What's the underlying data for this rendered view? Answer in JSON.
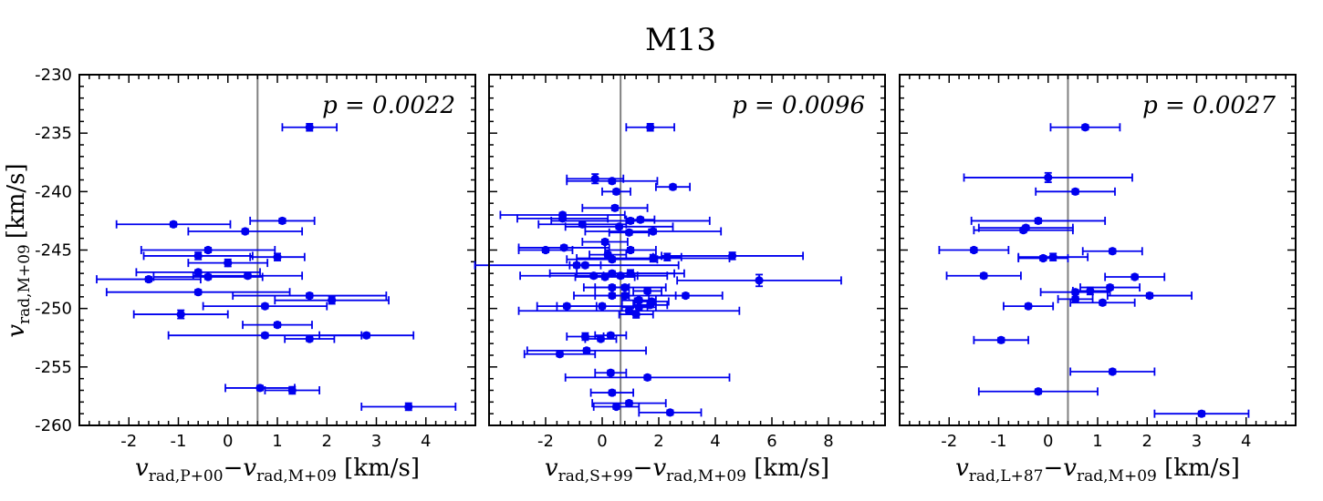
{
  "title": "M13",
  "y_axis_label_main": "v",
  "y_axis_label_sub": "rad,M+09",
  "y_axis_unit": "[km/s]",
  "chart_data": [
    {
      "type": "scatter",
      "title": "",
      "annotation": "p = 0.0022",
      "xlabel": "v_rad,P+00 − v_rad,M+09 [km/s]",
      "xlabel_parts": {
        "a_main": "v",
        "a_sub": "rad,P+00",
        "minus": "−",
        "b_main": "v",
        "b_sub": "rad,M+09",
        "unit": "[km/s]"
      },
      "ylabel": "v_rad,M+09 [km/s]",
      "xlim": [
        -3.0,
        5.0
      ],
      "ylim": [
        -260,
        -230
      ],
      "xticks": [
        -2,
        -1,
        0,
        1,
        2,
        3,
        4
      ],
      "yticks": [
        -230,
        -235,
        -240,
        -245,
        -250,
        -255,
        -260
      ],
      "vline": 0.6,
      "points": [
        {
          "x": 1.65,
          "y": -234.5,
          "xerr": 0.55,
          "yerr": 0.3
        },
        {
          "x": -1.1,
          "y": -242.8,
          "xerr": 1.15,
          "yerr": 0.2
        },
        {
          "x": 1.1,
          "y": -242.5,
          "xerr": 0.65,
          "yerr": 0.2
        },
        {
          "x": 0.35,
          "y": -243.4,
          "xerr": 1.15,
          "yerr": 0.2
        },
        {
          "x": -0.4,
          "y": -245.0,
          "xerr": 1.35,
          "yerr": 0.2
        },
        {
          "x": -0.6,
          "y": -245.5,
          "xerr": 1.1,
          "yerr": 0.3
        },
        {
          "x": 1.0,
          "y": -245.6,
          "xerr": 0.55,
          "yerr": 0.3
        },
        {
          "x": 0.0,
          "y": -246.1,
          "xerr": 0.8,
          "yerr": 0.3
        },
        {
          "x": -0.6,
          "y": -246.9,
          "xerr": 1.25,
          "yerr": 0.2
        },
        {
          "x": -0.4,
          "y": -247.3,
          "xerr": 1.1,
          "yerr": 0.2
        },
        {
          "x": 0.4,
          "y": -247.2,
          "xerr": 1.1,
          "yerr": 0.2
        },
        {
          "x": -1.6,
          "y": -247.5,
          "xerr": 1.05,
          "yerr": 0.2
        },
        {
          "x": -0.6,
          "y": -248.6,
          "xerr": 1.85,
          "yerr": 0.2
        },
        {
          "x": 1.65,
          "y": -248.9,
          "xerr": 1.55,
          "yerr": 0.2
        },
        {
          "x": 2.1,
          "y": -249.3,
          "xerr": 1.15,
          "yerr": 0.3
        },
        {
          "x": 0.75,
          "y": -249.8,
          "xerr": 1.25,
          "yerr": 0.2
        },
        {
          "x": -0.95,
          "y": -250.5,
          "xerr": 0.95,
          "yerr": 0.35
        },
        {
          "x": 1.0,
          "y": -251.4,
          "xerr": 0.7,
          "yerr": 0.2
        },
        {
          "x": 0.75,
          "y": -252.3,
          "xerr": 1.95,
          "yerr": 0.2
        },
        {
          "x": 2.8,
          "y": -252.3,
          "xerr": 0.95,
          "yerr": 0.2
        },
        {
          "x": 1.65,
          "y": -252.6,
          "xerr": 0.5,
          "yerr": 0.2
        },
        {
          "x": 0.65,
          "y": -256.8,
          "xerr": 0.7,
          "yerr": 0.2
        },
        {
          "x": 1.3,
          "y": -257.0,
          "xerr": 0.55,
          "yerr": 0.3
        },
        {
          "x": 3.65,
          "y": -258.4,
          "xerr": 0.95,
          "yerr": 0.3
        }
      ]
    },
    {
      "type": "scatter",
      "title": "",
      "annotation": "p = 0.0096",
      "xlabel": "v_rad,S+99 − v_rad,M+09 [km/s]",
      "xlabel_parts": {
        "a_main": "v",
        "a_sub": "rad,S+99",
        "minus": "−",
        "b_main": "v",
        "b_sub": "rad,M+09",
        "unit": "[km/s]"
      },
      "ylabel": "",
      "xlim": [
        -4.0,
        10.0
      ],
      "ylim": [
        -260,
        -230
      ],
      "xticks": [
        -2,
        0,
        2,
        4,
        6,
        8
      ],
      "yticks": [
        -230,
        -235,
        -240,
        -245,
        -250,
        -255,
        -260
      ],
      "vline": 0.65,
      "points": [
        {
          "x": 1.7,
          "y": -234.5,
          "xerr": 0.85,
          "yerr": 0.3
        },
        {
          "x": -0.25,
          "y": -238.9,
          "xerr": 1.0,
          "yerr": 0.4
        },
        {
          "x": 0.35,
          "y": -239.1,
          "xerr": 1.6,
          "yerr": 0.2
        },
        {
          "x": 2.5,
          "y": -239.6,
          "xerr": 0.6,
          "yerr": 0.2
        },
        {
          "x": 0.5,
          "y": -240.0,
          "xerr": 0.5,
          "yerr": 0.2
        },
        {
          "x": 0.45,
          "y": -241.4,
          "xerr": 1.15,
          "yerr": 0.2
        },
        {
          "x": -1.4,
          "y": -242.0,
          "xerr": 2.2,
          "yerr": 0.2
        },
        {
          "x": -1.4,
          "y": -242.3,
          "xerr": 1.6,
          "yerr": 0.2
        },
        {
          "x": 1.0,
          "y": -242.5,
          "xerr": 2.8,
          "yerr": 0.2
        },
        {
          "x": 1.35,
          "y": -242.4,
          "xerr": 0.5,
          "yerr": 0.2
        },
        {
          "x": -0.7,
          "y": -242.8,
          "xerr": 1.55,
          "yerr": 0.2
        },
        {
          "x": 0.6,
          "y": -243.0,
          "xerr": 1.9,
          "yerr": 0.2
        },
        {
          "x": 0.95,
          "y": -243.5,
          "xerr": 0.7,
          "yerr": 0.2
        },
        {
          "x": 1.8,
          "y": -243.4,
          "xerr": 2.4,
          "yerr": 0.2
        },
        {
          "x": 0.1,
          "y": -244.3,
          "xerr": 0.8,
          "yerr": 0.2
        },
        {
          "x": -2.0,
          "y": -245.0,
          "xerr": 0.95,
          "yerr": 0.2
        },
        {
          "x": -1.35,
          "y": -244.8,
          "xerr": 1.6,
          "yerr": 0.2
        },
        {
          "x": 1.0,
          "y": -245.0,
          "xerr": 0.9,
          "yerr": 0.2
        },
        {
          "x": 0.2,
          "y": -245.4,
          "xerr": 0.65,
          "yerr": 0.2
        },
        {
          "x": 0.35,
          "y": -245.8,
          "xerr": 1.6,
          "yerr": 0.2
        },
        {
          "x": 1.8,
          "y": -245.7,
          "xerr": 2.7,
          "yerr": 0.3
        },
        {
          "x": 2.3,
          "y": -245.6,
          "xerr": 0.5,
          "yerr": 0.3
        },
        {
          "x": 4.6,
          "y": -245.5,
          "xerr": 2.5,
          "yerr": 0.3
        },
        {
          "x": -0.9,
          "y": -246.3,
          "xerr": 3.6,
          "yerr": 0.2
        },
        {
          "x": -0.6,
          "y": -246.3,
          "xerr": 0.55,
          "yerr": 0.2
        },
        {
          "x": 0.35,
          "y": -247.0,
          "xerr": 2.2,
          "yerr": 0.2
        },
        {
          "x": 1.0,
          "y": -247.0,
          "xerr": 1.9,
          "yerr": 0.3
        },
        {
          "x": 0.1,
          "y": -247.3,
          "xerr": 1.05,
          "yerr": 0.2
        },
        {
          "x": -0.3,
          "y": -247.2,
          "xerr": 2.6,
          "yerr": 0.2
        },
        {
          "x": 0.65,
          "y": -247.2,
          "xerr": 0.6,
          "yerr": 0.2
        },
        {
          "x": 5.55,
          "y": -247.6,
          "xerr": 2.9,
          "yerr": 0.5
        },
        {
          "x": 0.35,
          "y": -248.2,
          "xerr": 0.6,
          "yerr": 0.2
        },
        {
          "x": 0.8,
          "y": -248.2,
          "xerr": 1.45,
          "yerr": 0.2
        },
        {
          "x": 1.6,
          "y": -248.5,
          "xerr": 0.5,
          "yerr": 0.2
        },
        {
          "x": 0.35,
          "y": -248.9,
          "xerr": 0.6,
          "yerr": 0.2
        },
        {
          "x": 0.8,
          "y": -248.9,
          "xerr": 1.8,
          "yerr": 0.2
        },
        {
          "x": 1.3,
          "y": -249.3,
          "xerr": 0.6,
          "yerr": 0.2
        },
        {
          "x": 2.95,
          "y": -248.9,
          "xerr": 1.3,
          "yerr": 0.2
        },
        {
          "x": 1.75,
          "y": -249.4,
          "xerr": 0.6,
          "yerr": 0.2
        },
        {
          "x": 1.7,
          "y": -249.7,
          "xerr": 0.6,
          "yerr": 0.2
        },
        {
          "x": -1.25,
          "y": -249.8,
          "xerr": 1.05,
          "yerr": 0.2
        },
        {
          "x": 0.0,
          "y": -249.8,
          "xerr": 1.6,
          "yerr": 0.2
        },
        {
          "x": 1.3,
          "y": -249.9,
          "xerr": 0.6,
          "yerr": 0.2
        },
        {
          "x": 0.95,
          "y": -250.2,
          "xerr": 3.9,
          "yerr": 0.2
        },
        {
          "x": 1.2,
          "y": -250.5,
          "xerr": 0.6,
          "yerr": 0.3
        },
        {
          "x": -0.6,
          "y": -252.4,
          "xerr": 0.65,
          "yerr": 0.3
        },
        {
          "x": 0.3,
          "y": -252.3,
          "xerr": 0.55,
          "yerr": 0.2
        },
        {
          "x": -0.05,
          "y": -252.6,
          "xerr": 0.55,
          "yerr": 0.2
        },
        {
          "x": -0.55,
          "y": -253.6,
          "xerr": 2.1,
          "yerr": 0.2
        },
        {
          "x": -1.5,
          "y": -253.9,
          "xerr": 1.25,
          "yerr": 0.2
        },
        {
          "x": 0.3,
          "y": -255.5,
          "xerr": 0.55,
          "yerr": 0.2
        },
        {
          "x": 1.6,
          "y": -255.9,
          "xerr": 2.9,
          "yerr": 0.2
        },
        {
          "x": 0.35,
          "y": -257.2,
          "xerr": 0.75,
          "yerr": 0.2
        },
        {
          "x": 0.95,
          "y": -258.1,
          "xerr": 1.3,
          "yerr": 0.2
        },
        {
          "x": 0.5,
          "y": -258.4,
          "xerr": 0.8,
          "yerr": 0.2
        },
        {
          "x": 2.4,
          "y": -258.9,
          "xerr": 1.1,
          "yerr": 0.2
        }
      ]
    },
    {
      "type": "scatter",
      "title": "",
      "annotation": "p = 0.0027",
      "xlabel": "v_rad,L+87 − v_rad,M+09 [km/s]",
      "xlabel_parts": {
        "a_main": "v",
        "a_sub": "rad,L+87",
        "minus": "−",
        "b_main": "v",
        "b_sub": "rad,M+09",
        "unit": "[km/s]"
      },
      "ylabel": "",
      "xlim": [
        -3.0,
        5.0
      ],
      "ylim": [
        -260,
        -230
      ],
      "xticks": [
        -2,
        -1,
        0,
        1,
        2,
        3,
        4
      ],
      "yticks": [
        -230,
        -235,
        -240,
        -245,
        -250,
        -255,
        -260
      ],
      "vline": 0.4,
      "points": [
        {
          "x": 0.75,
          "y": -234.5,
          "xerr": 0.7,
          "yerr": 0.2
        },
        {
          "x": 0.0,
          "y": -238.8,
          "xerr": 1.7,
          "yerr": 0.4
        },
        {
          "x": 0.55,
          "y": -240.0,
          "xerr": 0.8,
          "yerr": 0.2
        },
        {
          "x": -0.2,
          "y": -242.5,
          "xerr": 1.35,
          "yerr": 0.2
        },
        {
          "x": -0.45,
          "y": -243.1,
          "xerr": 0.95,
          "yerr": 0.2
        },
        {
          "x": -0.5,
          "y": -243.3,
          "xerr": 1.0,
          "yerr": 0.2
        },
        {
          "x": -1.5,
          "y": -245.0,
          "xerr": 0.7,
          "yerr": 0.2
        },
        {
          "x": 1.3,
          "y": -245.1,
          "xerr": 0.6,
          "yerr": 0.2
        },
        {
          "x": 0.1,
          "y": -245.6,
          "xerr": 0.7,
          "yerr": 0.3
        },
        {
          "x": -0.1,
          "y": -245.7,
          "xerr": 0.5,
          "yerr": 0.2
        },
        {
          "x": -1.3,
          "y": -247.2,
          "xerr": 0.75,
          "yerr": 0.2
        },
        {
          "x": 1.75,
          "y": -247.3,
          "xerr": 0.6,
          "yerr": 0.2
        },
        {
          "x": 1.25,
          "y": -248.2,
          "xerr": 0.6,
          "yerr": 0.2
        },
        {
          "x": 0.85,
          "y": -248.5,
          "xerr": 0.35,
          "yerr": 0.3
        },
        {
          "x": 0.55,
          "y": -248.6,
          "xerr": 0.7,
          "yerr": 0.2
        },
        {
          "x": 2.05,
          "y": -248.9,
          "xerr": 0.85,
          "yerr": 0.2
        },
        {
          "x": 0.55,
          "y": -249.2,
          "xerr": 0.35,
          "yerr": 0.2
        },
        {
          "x": 1.1,
          "y": -249.5,
          "xerr": 0.65,
          "yerr": 0.2
        },
        {
          "x": -0.4,
          "y": -249.8,
          "xerr": 0.5,
          "yerr": 0.2
        },
        {
          "x": -0.95,
          "y": -252.7,
          "xerr": 0.55,
          "yerr": 0.2
        },
        {
          "x": 1.3,
          "y": -255.4,
          "xerr": 0.85,
          "yerr": 0.2
        },
        {
          "x": -0.2,
          "y": -257.1,
          "xerr": 1.2,
          "yerr": 0.2
        },
        {
          "x": 3.1,
          "y": -259.0,
          "xerr": 0.95,
          "yerr": 0.2
        }
      ]
    }
  ],
  "colors": {
    "points": "#0000ee",
    "vline": "#808080",
    "axes": "#000000"
  }
}
